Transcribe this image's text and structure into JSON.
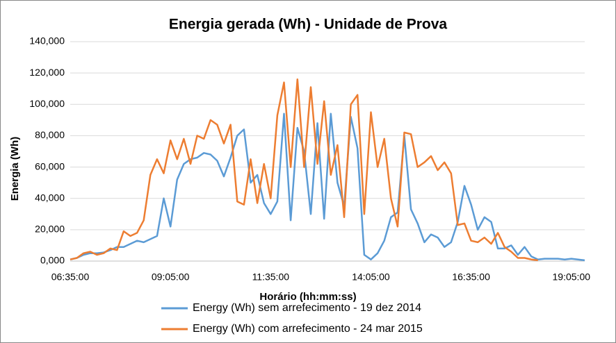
{
  "chart_data": {
    "type": "line",
    "title": "Energia gerada (Wh) - Unidade de Prova",
    "x_label": "Horário (hh:mm:ss)",
    "y_label": "Energia (Wh)",
    "categories": [
      "06:35:00",
      null,
      null,
      null,
      null,
      null,
      null,
      null,
      null,
      null,
      null,
      null,
      null,
      null,
      null,
      "09:05:00",
      null,
      null,
      null,
      null,
      null,
      null,
      null,
      null,
      null,
      null,
      null,
      null,
      null,
      null,
      "11:35:00",
      null,
      null,
      null,
      null,
      null,
      null,
      null,
      null,
      null,
      null,
      null,
      null,
      null,
      null,
      "14:05:00",
      null,
      null,
      null,
      null,
      null,
      null,
      null,
      null,
      null,
      null,
      null,
      null,
      null,
      null,
      "16:35:00",
      null,
      null,
      null,
      null,
      null,
      null,
      null,
      null,
      null,
      null,
      null,
      null,
      null,
      null,
      "19:05:00",
      null,
      null
    ],
    "series": [
      {
        "name": "Energy (Wh) sem arrefecimento - 19 dez 2014",
        "color": "#5b9bd5",
        "values": [
          1000,
          2000,
          4000,
          5000,
          5000,
          5500,
          7000,
          9000,
          9000,
          11000,
          13000,
          12000,
          14000,
          16000,
          40000,
          22000,
          52000,
          62000,
          65000,
          66000,
          69000,
          68000,
          64000,
          54000,
          66000,
          80000,
          84000,
          50000,
          55000,
          37000,
          30000,
          38000,
          94000,
          26000,
          85000,
          70000,
          30000,
          88000,
          27000,
          94000,
          50000,
          35000,
          92000,
          72000,
          4000,
          1000,
          5000,
          13000,
          28000,
          31000,
          80000,
          33000,
          24000,
          12000,
          17000,
          15000,
          9000,
          12000,
          25000,
          48000,
          36000,
          20000,
          28000,
          25000,
          8000,
          8000,
          10000,
          4000,
          9000,
          3000,
          1000,
          1500,
          1500,
          1500,
          1000,
          1500,
          1000,
          500
        ]
      },
      {
        "name": "Energy (Wh) com arrefecimento - 24 mar 2015",
        "color": "#ed7d31",
        "values": [
          1000,
          2000,
          5000,
          6000,
          4000,
          5000,
          8000,
          7000,
          19000,
          16000,
          18000,
          26000,
          55000,
          65000,
          56000,
          77000,
          65000,
          78000,
          62000,
          80000,
          78000,
          90000,
          87000,
          75000,
          87000,
          38000,
          36000,
          65000,
          37000,
          62000,
          40000,
          93000,
          114000,
          60000,
          116000,
          60000,
          111000,
          62000,
          102000,
          55000,
          74000,
          28000,
          100000,
          106000,
          30000,
          95000,
          60000,
          78000,
          40000,
          22000,
          82000,
          81000,
          60000,
          63000,
          67000,
          58000,
          63000,
          56000,
          23000,
          24000,
          13000,
          12000,
          15000,
          11000,
          18000,
          9000,
          6000,
          2000,
          2000,
          1000,
          500,
          null,
          null,
          null,
          null,
          null,
          null,
          null
        ]
      }
    ],
    "ylim": [
      0,
      140000
    ],
    "yticks": [
      {
        "value": 0,
        "label": "0,000"
      },
      {
        "value": 20000,
        "label": "20,000"
      },
      {
        "value": 40000,
        "label": "40,000"
      },
      {
        "value": 60000,
        "label": "60,000"
      },
      {
        "value": 80000,
        "label": "80,000"
      },
      {
        "value": 100000,
        "label": "100,000"
      },
      {
        "value": 120000,
        "label": "120,000"
      },
      {
        "value": 140000,
        "label": "140,000"
      }
    ],
    "grid": true,
    "legend": "bottom"
  }
}
